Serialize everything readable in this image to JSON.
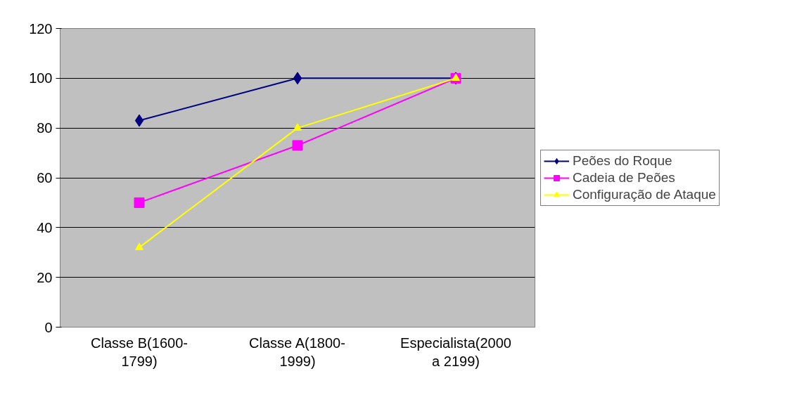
{
  "chart_data": {
    "type": "line",
    "categories": [
      "Classe B(1600-1799)",
      "Classe A(1800-1999)",
      "Especialista(2000 a 2199)"
    ],
    "series": [
      {
        "name": "Peões do Roque",
        "color": "#000080",
        "values": [
          83,
          100,
          100
        ],
        "marker": "diamond"
      },
      {
        "name": "Cadeia de Peões",
        "color": "#ff00ff",
        "values": [
          50,
          73,
          100
        ],
        "marker": "square"
      },
      {
        "name": "Configuração de Ataque",
        "color": "#ffff00",
        "values": [
          32,
          80,
          100
        ],
        "marker": "triangle"
      }
    ],
    "ylim": [
      0,
      120
    ],
    "yticks": [
      0,
      20,
      40,
      60,
      80,
      100,
      120
    ],
    "grid": "y",
    "legend": "right",
    "line_style": "solid"
  }
}
